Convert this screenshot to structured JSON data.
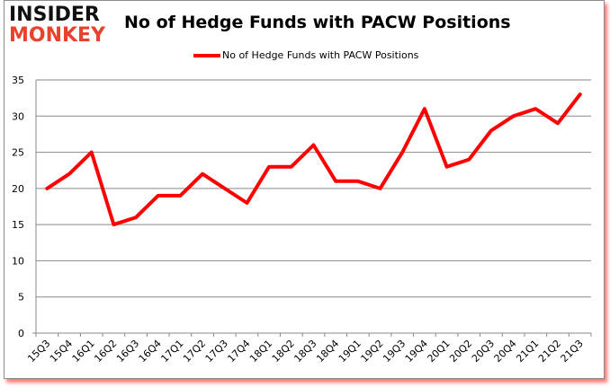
{
  "logo": {
    "line1": "INSIDER",
    "line2": "MONKEY"
  },
  "chart_data": {
    "type": "line",
    "title": "No of Hedge Funds with PACW Positions",
    "xlabel": "",
    "ylabel": "",
    "categories": [
      "15Q3",
      "15Q4",
      "16Q1",
      "16Q2",
      "16Q3",
      "16Q4",
      "17Q1",
      "17Q2",
      "17Q3",
      "17Q4",
      "18Q1",
      "18Q2",
      "18Q3",
      "18Q4",
      "19Q1",
      "19Q2",
      "19Q3",
      "19Q4",
      "20Q1",
      "20Q2",
      "20Q3",
      "20Q4",
      "21Q1",
      "21Q2",
      "21Q3"
    ],
    "series": [
      {
        "name": "No of Hedge Funds with PACW Positions",
        "color": "#ff0000",
        "values": [
          20,
          22,
          25,
          15,
          16,
          19,
          19,
          22,
          20,
          18,
          23,
          23,
          26,
          21,
          21,
          20,
          25,
          31,
          23,
          24,
          28,
          30,
          31,
          29,
          33
        ]
      }
    ],
    "ylim": [
      0,
      35
    ],
    "yticks": [
      0,
      5,
      10,
      15,
      20,
      25,
      30,
      35
    ],
    "grid": true,
    "legend_position": "top"
  }
}
